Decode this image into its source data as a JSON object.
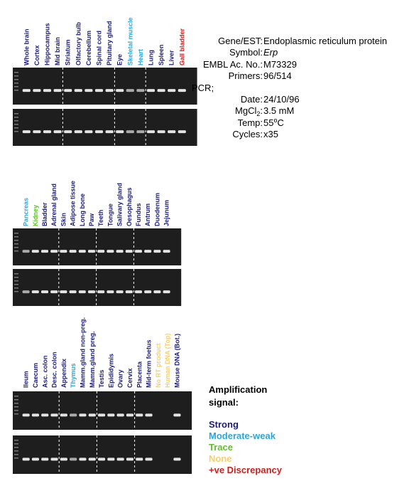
{
  "panels": [
    {
      "lanes": [
        {
          "label": "Whole brain",
          "color": "#1c1c78"
        },
        {
          "label": "Cortex",
          "color": "#1c1c78"
        },
        {
          "label": "Hippocampus",
          "color": "#1c1c78"
        },
        {
          "label": "Mid brain",
          "color": "#1c1c78"
        },
        {
          "label": "Striatum",
          "color": "#1c1c78"
        },
        {
          "label": "Olfactory bulb",
          "color": "#1c1c78"
        },
        {
          "label": "Cerebellum",
          "color": "#1c1c78"
        },
        {
          "label": "Spinal cord",
          "color": "#1c1c78"
        },
        {
          "label": "Pituitary gland",
          "color": "#1c1c78"
        },
        {
          "label": "Eye",
          "color": "#1c1c78"
        },
        {
          "label": "Skeletal muscle",
          "color": "#2aa7d8"
        },
        {
          "label": "Heart",
          "color": "#2aa7d8"
        },
        {
          "label": "Lung",
          "color": "#1c1c78"
        },
        {
          "label": "Spleen",
          "color": "#1c1c78"
        },
        {
          "label": "Liver",
          "color": "#1c1c78"
        },
        {
          "label": "Gall bladder",
          "color": "#c8201e"
        }
      ]
    },
    {
      "lanes": [
        {
          "label": "Pancreas",
          "color": "#2aa7d8"
        },
        {
          "label": "Kidney",
          "color": "#5fbf2a"
        },
        {
          "label": "Bladder",
          "color": "#1c1c78"
        },
        {
          "label": "Adrenal gland",
          "color": "#1c1c78"
        },
        {
          "label": "Skin",
          "color": "#1c1c78"
        },
        {
          "label": "Adipose tissue",
          "color": "#1c1c78"
        },
        {
          "label": "Long bone",
          "color": "#1c1c78"
        },
        {
          "label": "Paw",
          "color": "#1c1c78"
        },
        {
          "label": "Teeth",
          "color": "#1c1c78"
        },
        {
          "label": "Tongue",
          "color": "#1c1c78"
        },
        {
          "label": "Salivary gland",
          "color": "#1c1c78"
        },
        {
          "label": "Oesophagus",
          "color": "#1c1c78"
        },
        {
          "label": "Fundus",
          "color": "#1c1c78"
        },
        {
          "label": "Antrum",
          "color": "#1c1c78"
        },
        {
          "label": "Duodenum",
          "color": "#1c1c78"
        },
        {
          "label": "Jejunum",
          "color": "#1c1c78"
        }
      ]
    },
    {
      "lanes": [
        {
          "label": "Ileum",
          "color": "#1c1c78"
        },
        {
          "label": "Caecum",
          "color": "#1c1c78"
        },
        {
          "label": "Asc. colon",
          "color": "#1c1c78"
        },
        {
          "label": "Desc. colon",
          "color": "#1c1c78"
        },
        {
          "label": "Appendix",
          "color": "#1c1c78"
        },
        {
          "label": "Thymus",
          "color": "#2aa7d8"
        },
        {
          "label": "Mamm.gland non-preg.",
          "color": "#1c1c78"
        },
        {
          "label": "Mamm.gland preg.",
          "color": "#1c1c78"
        },
        {
          "label": "Testis",
          "color": "#1c1c78"
        },
        {
          "label": "Epididymis",
          "color": "#1c1c78"
        },
        {
          "label": "Ovary",
          "color": "#1c1c78"
        },
        {
          "label": "Cervix",
          "color": "#1c1c78"
        },
        {
          "label": "Placenta",
          "color": "#1c1c78"
        },
        {
          "label": "Mid-term foetus",
          "color": "#1c1c78"
        },
        {
          "label": "No RT product",
          "color": "#f5cf6a"
        },
        {
          "label": "Human DNA (Top)",
          "color": "#f5cf6a"
        },
        {
          "label": "Mouse DNA (Bot.)",
          "color": "#1c1c78"
        }
      ]
    }
  ],
  "info": [
    {
      "label": "Gene/EST:",
      "value": "Endoplasmic reticulum protein"
    },
    {
      "label": "Symbol:",
      "value": "Erp"
    },
    {
      "label": "EMBL Ac. No.:",
      "value": "M73329"
    },
    {
      "label": "Primers:",
      "value": "96/514"
    },
    {
      "label": "PCR;"
    },
    {
      "label": "Date:",
      "value": "24/10/96"
    },
    {
      "label": "MgCl",
      "sub": "2",
      "after": ":",
      "value": "3.5 mM"
    },
    {
      "label": "Temp:",
      "value": "55",
      "sup": "o",
      "value_end": "C"
    },
    {
      "label": "Cycles:",
      "value": "x35"
    }
  ],
  "legend": {
    "title": [
      "Amplification",
      "signal:"
    ],
    "items": [
      {
        "label": "Strong",
        "color": "#1c1c78"
      },
      {
        "label": "Moderate-weak",
        "color": "#2aa7d8"
      },
      {
        "label": "Trace",
        "color": "#5fbf2a"
      },
      {
        "label": "None",
        "color": "#f5cf6a"
      },
      {
        "label": "+ve Discrepancy",
        "color": "#c8201e"
      }
    ]
  }
}
